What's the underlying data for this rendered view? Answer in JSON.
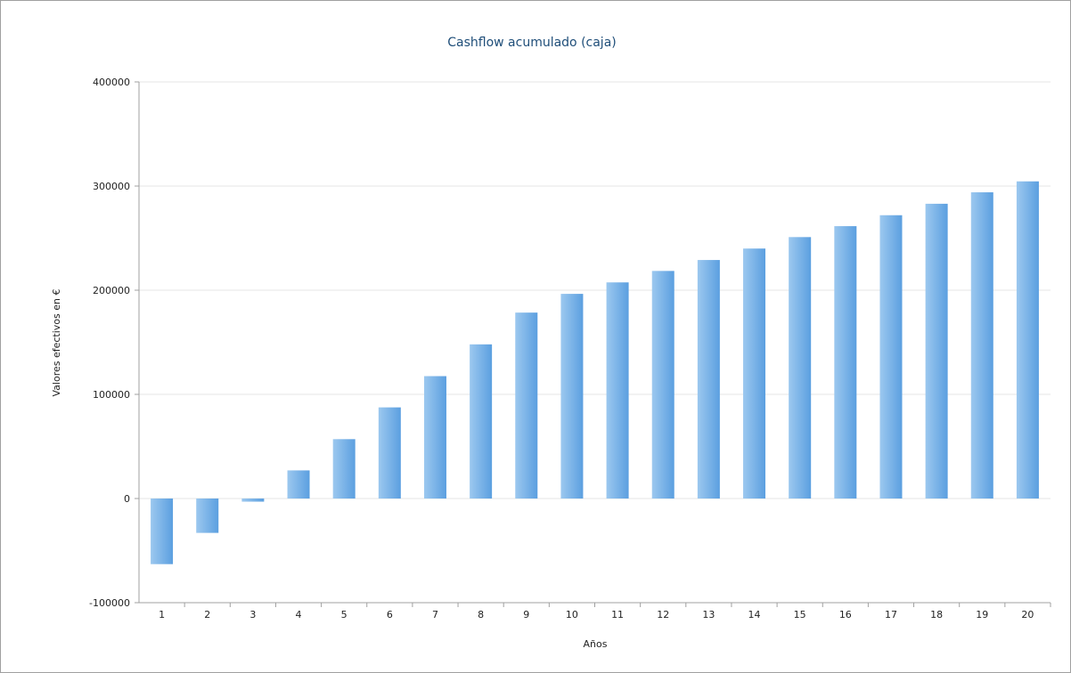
{
  "chart_data": {
    "type": "bar",
    "title": "Cashflow acumulado (caja)",
    "xlabel": "Años",
    "ylabel": "Valores efectivos en €",
    "categories": [
      "1",
      "2",
      "3",
      "4",
      "5",
      "6",
      "7",
      "8",
      "9",
      "10",
      "11",
      "12",
      "13",
      "14",
      "15",
      "16",
      "17",
      "18",
      "19",
      "20"
    ],
    "values": [
      -63000,
      -33000,
      -3000,
      27000,
      57000,
      87500,
      117500,
      148000,
      178500,
      196500,
      207500,
      218500,
      229000,
      240000,
      251000,
      261500,
      272000,
      283000,
      294000,
      304500
    ],
    "ylim": [
      -100000,
      400000
    ],
    "yticks": [
      "400000",
      "300000",
      "200000",
      "100000",
      "0",
      "-100000"
    ],
    "ytick_values": [
      400000,
      300000,
      200000,
      100000,
      0,
      -100000
    ],
    "grid": true,
    "legend": "none",
    "colors": {
      "bar_light": "#9cc8ef",
      "bar_dark": "#5b9fe0",
      "title": "#1f4e79",
      "grid": "#e6e6e6",
      "axis": "#a0a0a0"
    }
  }
}
